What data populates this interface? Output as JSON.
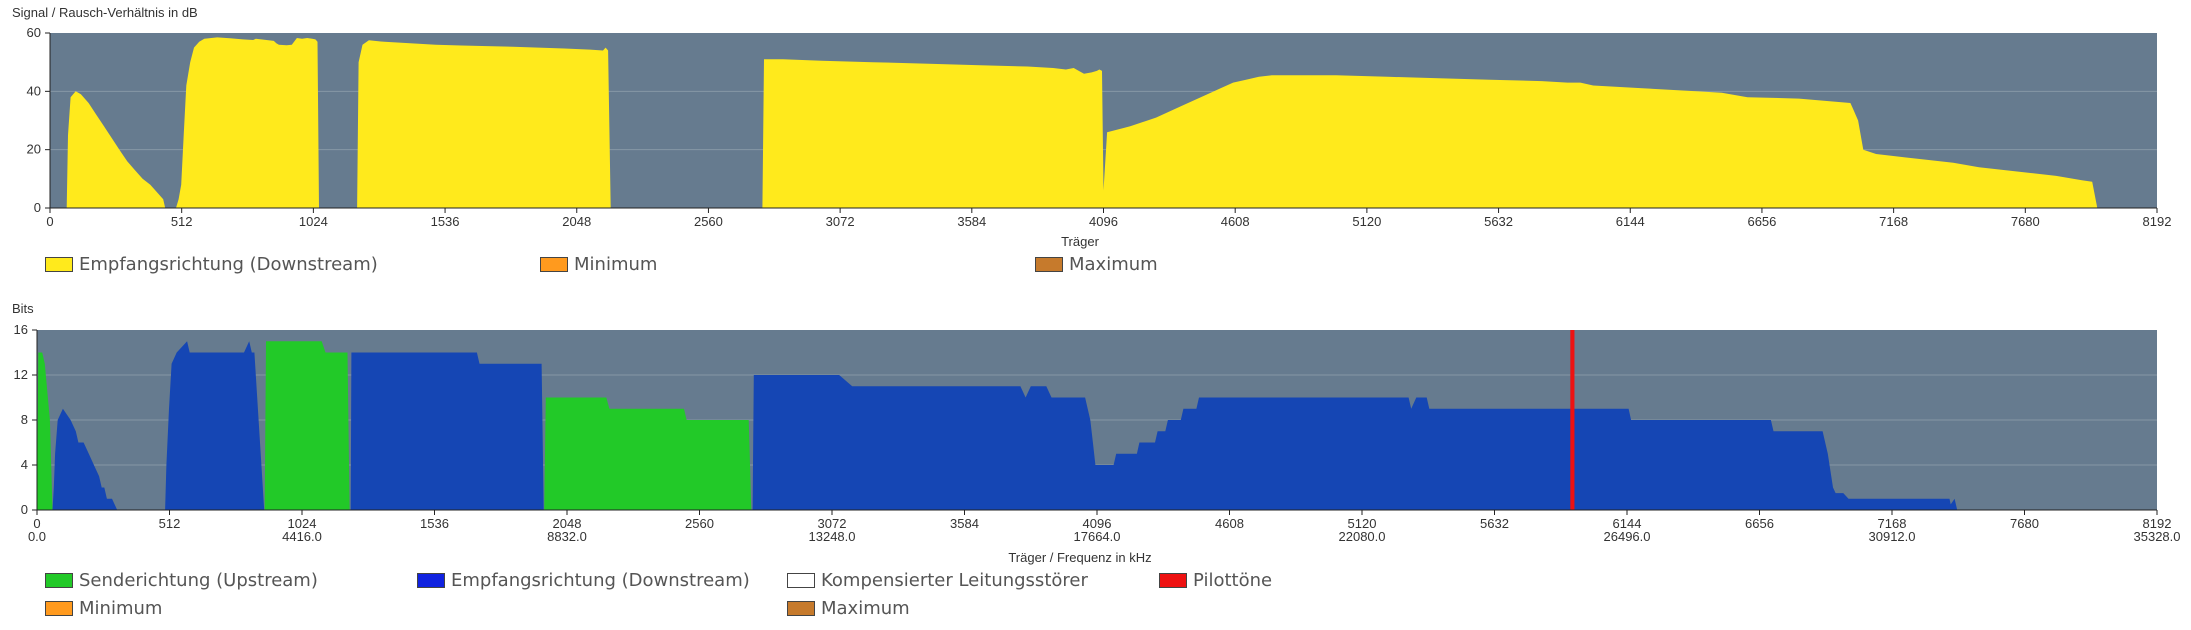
{
  "colors": {
    "plot_bg": "#667b8f",
    "grid": "#8797a6",
    "snr": "#ffea1c",
    "upstream": "#22c928",
    "downstream": "#1546b4",
    "pilot": "#ee1111",
    "minimum": "#ff9a1e",
    "maximum": "#c67a2c",
    "compensated": "#ffffff"
  },
  "chart_data": [
    {
      "type": "area",
      "title": "Signal / Rausch-Verhältnis in dB",
      "xlabel": "Träger",
      "ylabel": "Signal / Rausch-Verhältnis in dB",
      "xlim": [
        0,
        8192
      ],
      "ylim": [
        0,
        60
      ],
      "xticks": [
        "0",
        "512",
        "1024",
        "1536",
        "2048",
        "2560",
        "3072",
        "3584",
        "4096",
        "4608",
        "5120",
        "5632",
        "6144",
        "6656",
        "7168",
        "7680",
        "8192"
      ],
      "yticks": [
        "0",
        "20",
        "40",
        "60"
      ],
      "legend": [
        "Empfangsrichtung (Downstream)",
        "Minimum",
        "Maximum"
      ],
      "series": [
        {
          "name": "Empfangsrichtung (Downstream)",
          "segments": [
            [
              [
                65,
                0
              ],
              [
                70,
                25
              ],
              [
                80,
                38
              ],
              [
                100,
                40
              ],
              [
                120,
                39
              ],
              [
                150,
                36
              ],
              [
                180,
                32
              ],
              [
                210,
                28
              ],
              [
                240,
                24
              ],
              [
                270,
                20
              ],
              [
                300,
                16
              ],
              [
                330,
                13
              ],
              [
                360,
                10
              ],
              [
                390,
                8
              ],
              [
                420,
                5
              ],
              [
                440,
                3
              ],
              [
                448,
                0
              ]
            ],
            [
              [
                490,
                0
              ],
              [
                500,
                3
              ],
              [
                510,
                8
              ],
              [
                520,
                25
              ],
              [
                530,
                42
              ],
              [
                545,
                50
              ],
              [
                560,
                55
              ],
              [
                580,
                57
              ],
              [
                600,
                58
              ],
              [
                650,
                58.5
              ],
              [
                700,
                58.2
              ],
              [
                750,
                57.8
              ],
              [
                790,
                57.6
              ],
              [
                800,
                58
              ],
              [
                850,
                57.5
              ],
              [
                870,
                57.3
              ],
              [
                880,
                56.5
              ],
              [
                890,
                56
              ],
              [
                920,
                55.8
              ],
              [
                940,
                56
              ],
              [
                960,
                58.3
              ],
              [
                980,
                58
              ],
              [
                1000,
                58.3
              ],
              [
                1020,
                58
              ],
              [
                1032,
                57.8
              ],
              [
                1040,
                57
              ],
              [
                1046,
                0
              ]
            ],
            [
              [
                1194,
                0
              ],
              [
                1200,
                50
              ],
              [
                1215,
                56
              ],
              [
                1240,
                57.5
              ],
              [
                1300,
                57
              ],
              [
                1400,
                56.5
              ],
              [
                1500,
                56
              ],
              [
                1600,
                55.7
              ],
              [
                1700,
                55.5
              ],
              [
                1800,
                55.3
              ],
              [
                1900,
                55
              ],
              [
                2000,
                54.7
              ],
              [
                2100,
                54.3
              ],
              [
                2150,
                54
              ],
              [
                2160,
                55
              ],
              [
                2170,
                54
              ],
              [
                2180,
                0
              ]
            ],
            [
              [
                2770,
                0
              ],
              [
                2776,
                51
              ],
              [
                2850,
                51
              ],
              [
                3000,
                50.5
              ],
              [
                3200,
                50
              ],
              [
                3400,
                49.5
              ],
              [
                3600,
                49
              ],
              [
                3800,
                48.5
              ],
              [
                3900,
                48
              ],
              [
                3950,
                47.5
              ],
              [
                3980,
                48
              ],
              [
                4000,
                47
              ],
              [
                4020,
                46
              ],
              [
                4050,
                46.5
              ],
              [
                4070,
                47
              ],
              [
                4080,
                47.5
              ],
              [
                4090,
                47
              ],
              [
                4096,
                6
              ],
              [
                4110,
                26
              ],
              [
                4200,
                28
              ],
              [
                4300,
                31
              ],
              [
                4400,
                35
              ],
              [
                4500,
                39
              ],
              [
                4550,
                41
              ],
              [
                4600,
                43
              ],
              [
                4650,
                44
              ],
              [
                4700,
                45
              ],
              [
                4750,
                45.5
              ],
              [
                4800,
                45.5
              ],
              [
                5000,
                45.5
              ],
              [
                5200,
                45
              ],
              [
                5400,
                44.5
              ],
              [
                5600,
                44
              ],
              [
                5800,
                43.5
              ],
              [
                5900,
                43
              ],
              [
                5950,
                43
              ],
              [
                6000,
                42
              ],
              [
                6200,
                41
              ],
              [
                6400,
                40
              ],
              [
                6500,
                39.5
              ],
              [
                6600,
                38
              ],
              [
                6800,
                37.5
              ],
              [
                7000,
                36
              ],
              [
                7010,
                34
              ],
              [
                7030,
                30
              ],
              [
                7050,
                20
              ],
              [
                7100,
                18.5
              ],
              [
                7200,
                17.5
              ],
              [
                7300,
                16.5
              ],
              [
                7400,
                15.5
              ],
              [
                7500,
                14
              ],
              [
                7600,
                13
              ],
              [
                7700,
                12
              ],
              [
                7800,
                11
              ],
              [
                7900,
                9.5
              ],
              [
                7940,
                9
              ],
              [
                7960,
                0
              ]
            ]
          ]
        },
        {
          "name": "Minimum",
          "segments": []
        },
        {
          "name": "Maximum",
          "segments": []
        }
      ]
    },
    {
      "type": "area",
      "title": "Bits",
      "xlabel": "Träger / Frequenz in kHz",
      "ylabel": "Bits",
      "xlim": [
        0,
        8192
      ],
      "ylim": [
        0,
        16
      ],
      "xticks": [
        "0",
        "512",
        "1024",
        "1536",
        "2048",
        "2560",
        "3072",
        "3584",
        "4096",
        "4608",
        "5120",
        "5632",
        "6144",
        "6656",
        "7168",
        "7680",
        "8192"
      ],
      "xticks2": [
        "0.0",
        "4416.0",
        "8832.0",
        "13248.0",
        "17664.0",
        "22080.0",
        "26496.0",
        "30912.0",
        "35328.0"
      ],
      "yticks": [
        "0",
        "4",
        "8",
        "12",
        "16"
      ],
      "legend": [
        "Senderichtung (Upstream)",
        "Empfangsrichtung (Downstream)",
        "Kompensierter Leitungsstörer",
        "Pilottöne",
        "Minimum",
        "Maximum"
      ],
      "series": [
        {
          "name": "Senderichtung (Upstream)",
          "segments": [
            [
              [
                0,
                0
              ],
              [
                5,
                14
              ],
              [
                20,
                14
              ],
              [
                30,
                13
              ],
              [
                50,
                8
              ],
              [
                60,
                0
              ]
            ],
            [
              [
                880,
                0
              ],
              [
                885,
                15
              ],
              [
                1100,
                15
              ],
              [
                1115,
                14
              ],
              [
                1200,
                14
              ],
              [
                1208,
                0
              ]
            ],
            [
              [
                1960,
                0
              ],
              [
                1966,
                10
              ],
              [
                2200,
                10
              ],
              [
                2212,
                9
              ],
              [
                2500,
                9
              ],
              [
                2510,
                8
              ],
              [
                2750,
                8
              ],
              [
                2760,
                0
              ]
            ]
          ]
        },
        {
          "name": "Empfangsrichtung (Downstream)",
          "segments": [
            [
              [
                60,
                0
              ],
              [
                65,
                2
              ],
              [
                70,
                5
              ],
              [
                80,
                8
              ],
              [
                100,
                9
              ],
              [
                130,
                8
              ],
              [
                150,
                7
              ],
              [
                160,
                6
              ],
              [
                180,
                6
              ],
              [
                200,
                5
              ],
              [
                220,
                4
              ],
              [
                240,
                3
              ],
              [
                250,
                2
              ],
              [
                260,
                2
              ],
              [
                270,
                1
              ],
              [
                290,
                1
              ],
              [
                300,
                0.5
              ],
              [
                310,
                0
              ]
            ],
            [
              [
                495,
                0
              ],
              [
                500,
                4
              ],
              [
                510,
                9
              ],
              [
                520,
                13
              ],
              [
                540,
                14
              ],
              [
                560,
                14.5
              ],
              [
                580,
                15
              ],
              [
                590,
                14
              ],
              [
                600,
                14
              ],
              [
                800,
                14
              ],
              [
                810,
                14.5
              ],
              [
                820,
                15
              ],
              [
                830,
                14
              ],
              [
                840,
                14
              ],
              [
                878,
                0
              ]
            ],
            [
              [
                1212,
                0
              ],
              [
                1215,
                14
              ],
              [
                1600,
                14
              ],
              [
                1700,
                14
              ],
              [
                1710,
                13
              ],
              [
                1950,
                13
              ],
              [
                1958,
                0
              ]
            ],
            [
              [
                2765,
                0
              ],
              [
                2770,
                12
              ],
              [
                3100,
                12
              ],
              [
                3150,
                11
              ],
              [
                3800,
                11
              ],
              [
                3820,
                10
              ],
              [
                3840,
                11
              ],
              [
                3900,
                11
              ],
              [
                3920,
                10
              ],
              [
                4050,
                10
              ],
              [
                4060,
                9
              ],
              [
                4070,
                8
              ],
              [
                4080,
                6
              ],
              [
                4090,
                4
              ],
              [
                4096,
                4
              ],
              [
                4160,
                4
              ],
              [
                4170,
                5
              ],
              [
                4250,
                5
              ],
              [
                4260,
                6
              ],
              [
                4320,
                6
              ],
              [
                4330,
                7
              ],
              [
                4360,
                7
              ],
              [
                4370,
                8
              ],
              [
                4420,
                8
              ],
              [
                4430,
                9
              ],
              [
                4480,
                9
              ],
              [
                4490,
                10
              ],
              [
                5300,
                10
              ],
              [
                5310,
                9
              ],
              [
                5330,
                10
              ],
              [
                5370,
                10
              ],
              [
                5380,
                9
              ],
              [
                5900,
                9
              ],
              [
                6150,
                9
              ],
              [
                6160,
                8
              ],
              [
                6700,
                8
              ],
              [
                6710,
                7
              ],
              [
                6900,
                7
              ],
              [
                6920,
                5
              ],
              [
                6940,
                2
              ],
              [
                6950,
                1.5
              ],
              [
                6980,
                1.5
              ],
              [
                7000,
                1
              ],
              [
                7100,
                1
              ],
              [
                7390,
                1
              ],
              [
                7395,
                0.5
              ],
              [
                7410,
                1
              ],
              [
                7420,
                0
              ]
            ]
          ]
        },
        {
          "name": "Kompensierter Leitungsstörer",
          "segments": []
        },
        {
          "name": "Pilottöne",
          "markers": [
            5925,
            5941
          ]
        },
        {
          "name": "Minimum",
          "segments": []
        },
        {
          "name": "Maximum",
          "segments": []
        }
      ]
    }
  ]
}
